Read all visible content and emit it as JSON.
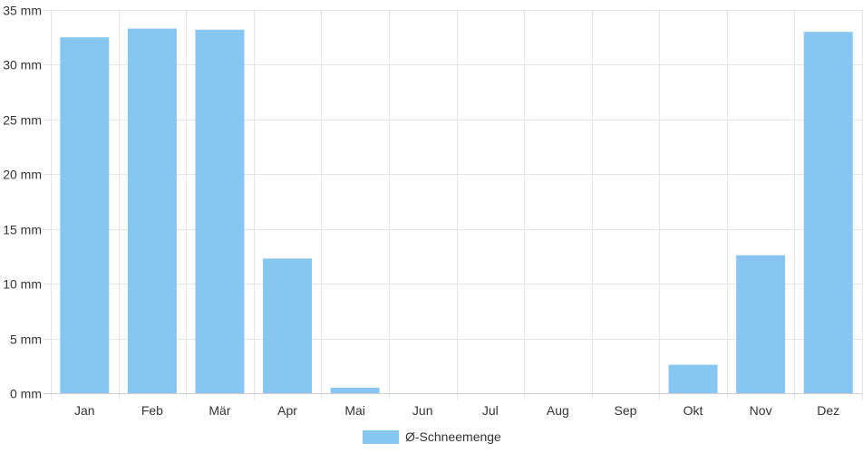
{
  "chart_data": {
    "type": "bar",
    "categories": [
      "Jan",
      "Feb",
      "Mär",
      "Apr",
      "Mai",
      "Jun",
      "Jul",
      "Aug",
      "Sep",
      "Okt",
      "Nov",
      "Dez"
    ],
    "series": [
      {
        "name": "Ø-Schneemenge",
        "values": [
          32.5,
          33.3,
          33.2,
          12.3,
          0.5,
          0,
          0,
          0,
          0,
          2.6,
          12.6,
          33.0
        ],
        "color": "#88c6f2"
      }
    ],
    "y_unit": "mm",
    "ylim": [
      0,
      35
    ],
    "y_ticks": [
      0,
      5,
      10,
      15,
      20,
      25,
      30,
      35
    ],
    "y_tick_labels": [
      "0 mm",
      "5 mm",
      "10 mm",
      "15 mm",
      "20 mm",
      "25 mm",
      "30 mm",
      "35 mm"
    ],
    "grid": true,
    "legend_position": "bottom"
  }
}
